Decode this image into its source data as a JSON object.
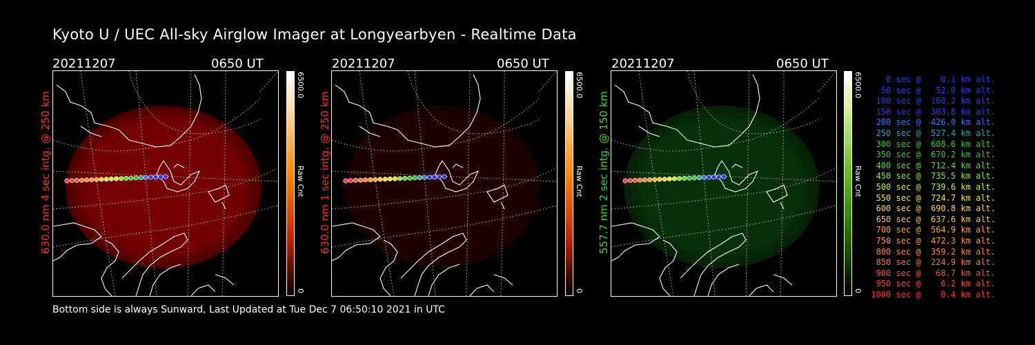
{
  "title": "Kyoto U / UEC All-sky Airglow Imager at Longyearbyen - Realtime Data",
  "footer": "Bottom side is always Sunward, Last Updated at Tue Dec  7 06:50:10 2021 in UTC",
  "panels": [
    {
      "date": "20211207",
      "time": "0650 UT",
      "ylabel": "630.0 nm 4 sec intg. @ 250 km",
      "label_color": "#ff2a2a",
      "cbar_max": "6500.0",
      "cbar_min": "0",
      "cbar_unit": "Raw Cnt",
      "glow_color": "#a00000",
      "glow_opacity": 0.75
    },
    {
      "date": "20211207",
      "time": "0650 UT",
      "ylabel": "630.0 nm 1 sec intg. @ 250 km",
      "label_color": "#ff2a2a",
      "cbar_max": "6500.0",
      "cbar_min": "0",
      "cbar_unit": "Raw Cnt",
      "glow_color": "#7a0000",
      "glow_opacity": 0.28
    },
    {
      "date": "20211207",
      "time": "0650 UT",
      "ylabel": "557.7 nm 2 sec intg. @ 150 km",
      "label_color": "#33dd33",
      "cbar_max": "6500.0",
      "cbar_min": "0",
      "cbar_unit": "Raw Cnt",
      "glow_color": "#0f5a0f",
      "glow_opacity": 0.55
    }
  ],
  "trajectory_legend": [
    {
      "text": "   0 sec @    0.1 km alt.",
      "color": "#3333ff"
    },
    {
      "text": "  50 sec @   52.0 km alt.",
      "color": "#3333ff"
    },
    {
      "text": " 100 sec @  160.2 km alt.",
      "color": "#3333ff"
    },
    {
      "text": " 150 sec @  303.8 km alt.",
      "color": "#3333ff"
    },
    {
      "text": " 200 sec @  426.0 km alt.",
      "color": "#3377ff"
    },
    {
      "text": " 250 sec @  527.4 km alt.",
      "color": "#22aaaa"
    },
    {
      "text": " 300 sec @  608.6 km alt.",
      "color": "#33cc33"
    },
    {
      "text": " 350 sec @  670.2 km alt.",
      "color": "#33cc33"
    },
    {
      "text": " 400 sec @  712.4 km alt.",
      "color": "#55dd33"
    },
    {
      "text": " 450 sec @  735.5 km alt.",
      "color": "#88ee33"
    },
    {
      "text": " 500 sec @  739.6 km alt.",
      "color": "#ccee33"
    },
    {
      "text": " 550 sec @  724.7 km alt.",
      "color": "#eeee33"
    },
    {
      "text": " 600 sec @  690.8 km alt.",
      "color": "#ffdd33"
    },
    {
      "text": " 650 sec @  637.6 km alt.",
      "color": "#ffcc33"
    },
    {
      "text": " 700 sec @  564.9 km alt.",
      "color": "#ffaa33"
    },
    {
      "text": " 750 sec @  472.3 km alt.",
      "color": "#ff9933"
    },
    {
      "text": " 800 sec @  359.2 km alt.",
      "color": "#ff8833"
    },
    {
      "text": " 850 sec @  224.9 km alt.",
      "color": "#ff7733"
    },
    {
      "text": " 900 sec @   68.7 km alt.",
      "color": "#ff5533"
    },
    {
      "text": " 950 sec @    6.2 km alt.",
      "color": "#ff4433"
    },
    {
      "text": "1000 sec @    0.4 km alt.",
      "color": "#ff3333"
    }
  ],
  "colors": {
    "background": "#000000",
    "grid": "#bbbbbb",
    "coast": "#ffffff"
  }
}
